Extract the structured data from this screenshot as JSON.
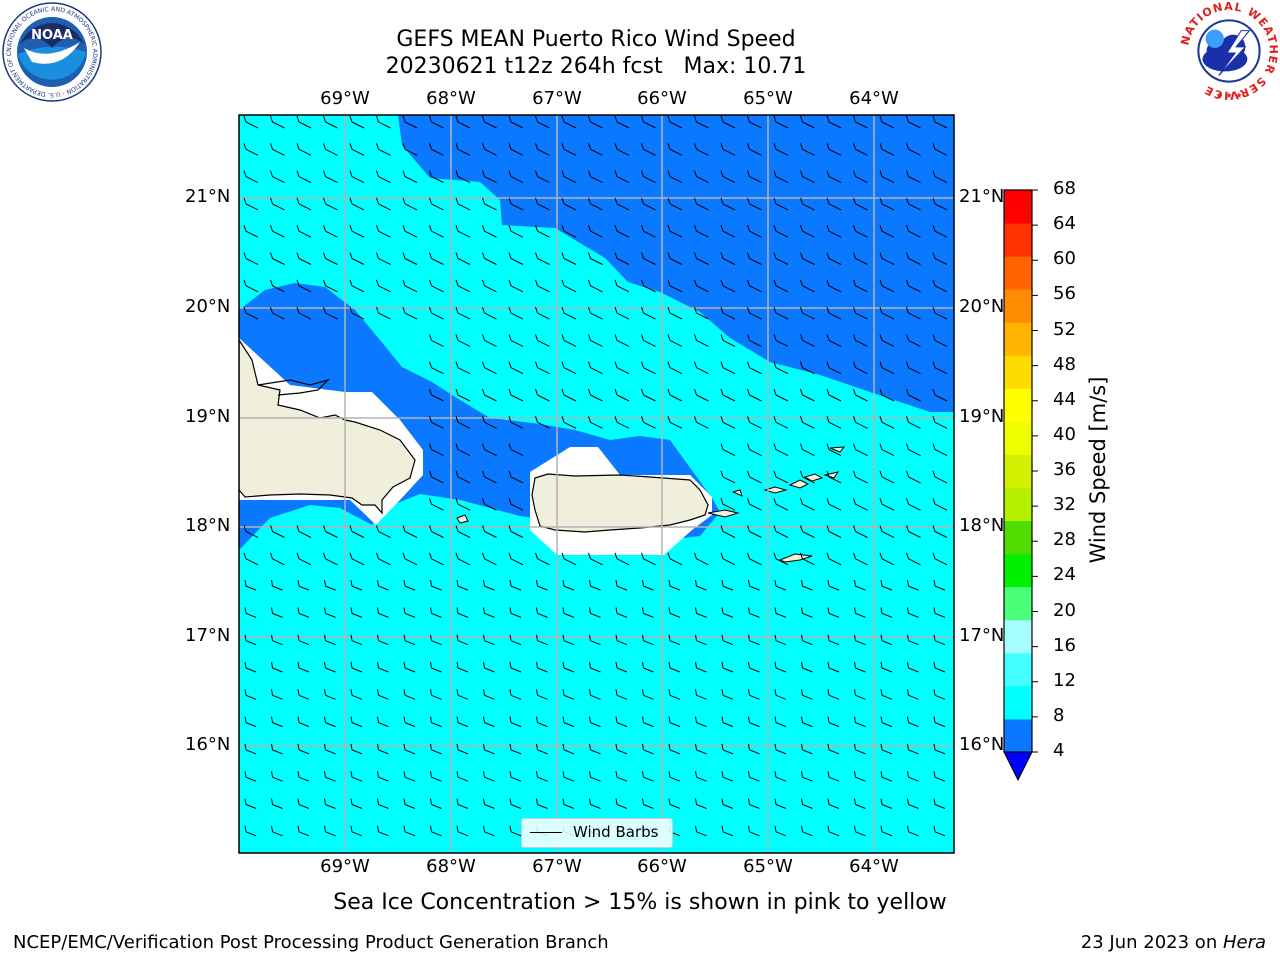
{
  "header": {
    "title_line1": "GEFS MEAN Puerto Rico Wind Speed",
    "title_line2": "20230621 t12z 264h fcst   Max: 10.71"
  },
  "logos": {
    "noaa": {
      "text": "NOAA",
      "ring_text": "NATIONAL OCEANIC AND ATMOSPHERIC ADMINISTRATION · U.S. DEPARTMENT OF COMMERCE"
    },
    "nws": {
      "ring_text": "NATIONAL WEATHER SERVICE"
    }
  },
  "map": {
    "lon_labels": [
      "69°W",
      "68°W",
      "67°W",
      "66°W",
      "65°W",
      "64°W"
    ],
    "lat_labels": [
      "21°N",
      "20°N",
      "19°N",
      "18°N",
      "17°N",
      "16°N"
    ],
    "lon_range": [
      -70.0,
      -63.25
    ],
    "lat_range": [
      15.0,
      21.75
    ],
    "grid": true,
    "land_color": "#efefdb",
    "fill_colors": {
      "band_4_8": "#0a78ff",
      "band_8_12": "#00ffff",
      "masked": "#ffffff"
    }
  },
  "colorbar": {
    "label": "Wind Speed [m/s]",
    "ticks": [
      "68",
      "64",
      "60",
      "56",
      "52",
      "48",
      "44",
      "40",
      "36",
      "32",
      "28",
      "24",
      "20",
      "16",
      "12",
      "8",
      "4"
    ],
    "colors": [
      "#0a78ff",
      "#00ffff",
      "#44ffff",
      "#a6ffff",
      "#4cff7a",
      "#00f000",
      "#50dc00",
      "#b4f000",
      "#d2f000",
      "#f0ff00",
      "#ffff00",
      "#ffdc00",
      "#ffb400",
      "#ff8c00",
      "#ff6400",
      "#ff3200",
      "#ff0000"
    ],
    "under_color": "#0000ff"
  },
  "legend": {
    "label": "Wind Barbs"
  },
  "subtitle": "Sea Ice Concentration > 15% is shown in pink to yellow",
  "footer": {
    "left": "NCEP/EMC/Verification Post Processing Product Generation Branch",
    "right_prefix": "23 Jun 2023 on ",
    "right_machine": "Hera"
  }
}
